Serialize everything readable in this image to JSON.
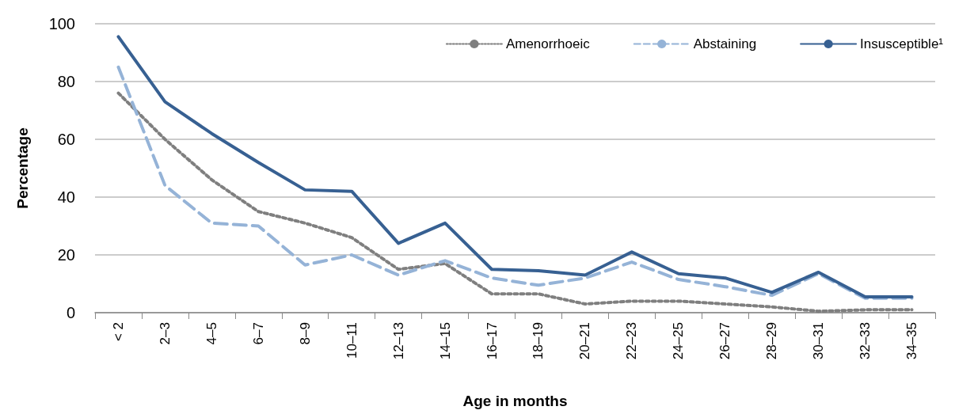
{
  "chart_data": {
    "type": "line",
    "xlabel": "Age in months",
    "ylabel": "Percentage",
    "categories": [
      "< 2",
      "2–3",
      "4–5",
      "6–7",
      "8–9",
      "10–11",
      "12–13",
      "14–15",
      "16–17",
      "18–19",
      "20–21",
      "22–23",
      "24–25",
      "26–27",
      "28–29",
      "30–31",
      "32–33",
      "34–35"
    ],
    "series": [
      {
        "name": "Amenorrhoeic",
        "color": "#7f7f7f",
        "line_style": "dotted",
        "values": [
          76,
          60,
          46,
          35,
          31,
          26,
          15,
          17,
          6.5,
          6.5,
          3,
          4,
          4,
          3,
          2,
          0.5,
          1,
          1
        ]
      },
      {
        "name": "Abstaining",
        "color": "#95b3d7",
        "line_style": "dashed",
        "values": [
          85,
          44,
          31,
          30,
          16.5,
          20,
          13,
          18,
          12,
          9.5,
          12,
          17.5,
          11.5,
          9,
          6,
          13.5,
          5,
          5
        ]
      },
      {
        "name": "Insusceptible¹",
        "color": "#376092",
        "line_style": "solid",
        "values": [
          95.5,
          73,
          62,
          52,
          42.5,
          42,
          24,
          31,
          15,
          14.5,
          13,
          21,
          13.5,
          12,
          7,
          14,
          5.5,
          5.5
        ]
      }
    ],
    "ylim": [
      0,
      100
    ],
    "yticks": [
      0,
      20,
      40,
      60,
      80,
      100
    ],
    "grid": "y",
    "legend": "top right",
    "marker": "none"
  }
}
